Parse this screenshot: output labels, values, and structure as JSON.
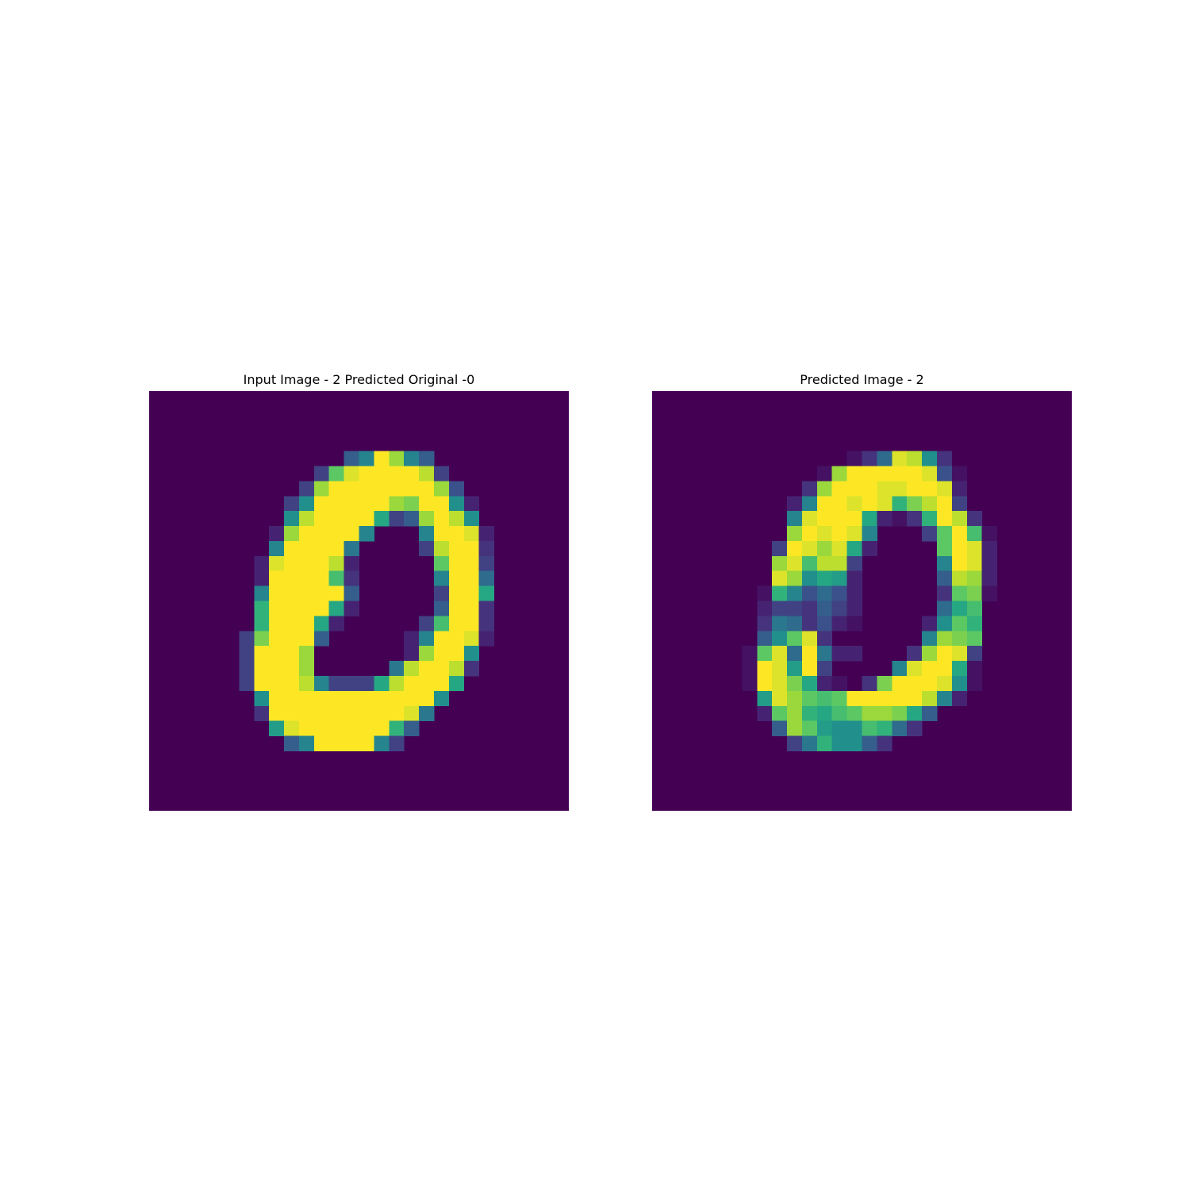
{
  "chart_data": [
    {
      "type": "heatmap",
      "title": "Input Image - 2 Predicted Original -0",
      "colormap": "viridis",
      "value_range": [
        0,
        1
      ],
      "axes": "off",
      "rows": 28,
      "cols": 28,
      "pixels": {
        "4": {
          "13": 0.3,
          "14": 0.45,
          "15": 1.0,
          "16": 0.85,
          "17": 0.45,
          "18": 0.3
        },
        "5": {
          "11": 0.2,
          "12": 0.75,
          "13": 0.95,
          "14": 1.0,
          "15": 1.0,
          "16": 1.0,
          "17": 1.0,
          "18": 0.9,
          "19": 0.2
        },
        "6": {
          "10": 0.2,
          "11": 0.85,
          "12": 1.0,
          "13": 1.0,
          "14": 1.0,
          "15": 1.0,
          "16": 1.0,
          "17": 1.0,
          "18": 1.0,
          "19": 0.85,
          "20": 0.25
        },
        "7": {
          "9": 0.2,
          "10": 0.5,
          "11": 1.0,
          "12": 1.0,
          "13": 1.0,
          "14": 1.0,
          "15": 1.0,
          "16": 0.85,
          "17": 0.8,
          "18": 1.0,
          "19": 1.0,
          "20": 0.5,
          "21": 0.1
        },
        "8": {
          "9": 0.5,
          "10": 0.9,
          "11": 1.0,
          "12": 1.0,
          "13": 1.0,
          "14": 1.0,
          "15": 0.6,
          "16": 0.2,
          "17": 0.3,
          "18": 0.85,
          "19": 1.0,
          "20": 0.9,
          "21": 0.5
        },
        "9": {
          "8": 0.1,
          "9": 0.85,
          "10": 1.0,
          "11": 1.0,
          "12": 1.0,
          "13": 1.0,
          "14": 0.45,
          "18": 0.45,
          "19": 1.0,
          "20": 1.0,
          "21": 0.95,
          "22": 0.1
        },
        "10": {
          "8": 0.45,
          "9": 1.0,
          "10": 1.0,
          "11": 1.0,
          "12": 1.0,
          "13": 0.4,
          "18": 0.2,
          "19": 0.9,
          "20": 1.0,
          "21": 1.0,
          "22": 0.15
        },
        "11": {
          "7": 0.1,
          "8": 0.95,
          "9": 1.0,
          "10": 1.0,
          "11": 1.0,
          "12": 0.9,
          "13": 0.1,
          "19": 0.75,
          "20": 1.0,
          "21": 1.0,
          "22": 0.2
        },
        "12": {
          "7": 0.1,
          "8": 1.0,
          "9": 1.0,
          "10": 1.0,
          "11": 1.0,
          "12": 0.7,
          "13": 0.15,
          "19": 0.45,
          "20": 1.0,
          "21": 1.0,
          "22": 0.35
        },
        "13": {
          "7": 0.45,
          "8": 1.0,
          "9": 1.0,
          "10": 1.0,
          "11": 1.0,
          "12": 1.0,
          "13": 0.3,
          "19": 0.2,
          "20": 1.0,
          "21": 1.0,
          "22": 0.6
        },
        "14": {
          "7": 0.65,
          "8": 1.0,
          "9": 1.0,
          "10": 1.0,
          "11": 1.0,
          "12": 0.6,
          "13": 0.1,
          "19": 0.3,
          "20": 1.0,
          "21": 1.0,
          "22": 0.15
        },
        "15": {
          "7": 0.65,
          "8": 1.0,
          "9": 1.0,
          "10": 1.0,
          "11": 0.6,
          "12": 0.1,
          "18": 0.2,
          "19": 0.7,
          "20": 1.0,
          "21": 1.0,
          "22": 0.15
        },
        "16": {
          "6": 0.2,
          "7": 0.8,
          "8": 1.0,
          "9": 1.0,
          "10": 1.0,
          "11": 0.3,
          "17": 0.1,
          "18": 0.45,
          "19": 1.0,
          "20": 1.0,
          "21": 0.95,
          "22": 0.1
        },
        "17": {
          "6": 0.2,
          "7": 1.0,
          "8": 1.0,
          "9": 1.0,
          "10": 0.85,
          "17": 0.1,
          "18": 0.85,
          "19": 1.0,
          "20": 1.0,
          "21": 0.5
        },
        "18": {
          "6": 0.2,
          "7": 1.0,
          "8": 1.0,
          "9": 1.0,
          "10": 0.85,
          "16": 0.4,
          "17": 0.9,
          "18": 1.0,
          "19": 1.0,
          "20": 0.9,
          "21": 0.15
        },
        "19": {
          "6": 0.2,
          "7": 1.0,
          "8": 1.0,
          "9": 1.0,
          "10": 0.9,
          "11": 0.45,
          "12": 0.2,
          "13": 0.2,
          "14": 0.2,
          "15": 0.6,
          "16": 0.9,
          "17": 1.0,
          "18": 1.0,
          "19": 1.0,
          "20": 0.6
        },
        "20": {
          "7": 0.5,
          "8": 1.0,
          "9": 1.0,
          "10": 1.0,
          "11": 1.0,
          "12": 1.0,
          "13": 1.0,
          "14": 1.0,
          "15": 1.0,
          "16": 1.0,
          "17": 1.0,
          "18": 1.0,
          "19": 0.5
        },
        "21": {
          "7": 0.15,
          "8": 1.0,
          "9": 1.0,
          "10": 1.0,
          "11": 1.0,
          "12": 1.0,
          "13": 1.0,
          "14": 1.0,
          "15": 1.0,
          "16": 1.0,
          "17": 0.95,
          "18": 0.4
        },
        "22": {
          "8": 0.55,
          "9": 0.95,
          "10": 1.0,
          "11": 1.0,
          "12": 1.0,
          "13": 1.0,
          "14": 1.0,
          "15": 1.0,
          "16": 0.65,
          "17": 0.3
        },
        "23": {
          "9": 0.3,
          "10": 0.45,
          "11": 1.0,
          "12": 1.0,
          "13": 1.0,
          "14": 1.0,
          "15": 0.45,
          "16": 0.2
        }
      }
    },
    {
      "type": "heatmap",
      "title": "Predicted Image - 2",
      "colormap": "viridis",
      "value_range": [
        0,
        1
      ],
      "axes": "off",
      "rows": 28,
      "cols": 28,
      "pixels": {
        "4": {
          "13": 0.05,
          "14": 0.15,
          "15": 0.35,
          "16": 0.95,
          "17": 0.9,
          "18": 0.5,
          "19": 0.15
        },
        "5": {
          "11": 0.05,
          "12": 0.85,
          "13": 1.0,
          "14": 1.0,
          "15": 1.0,
          "16": 1.0,
          "17": 1.0,
          "18": 0.95,
          "19": 0.25,
          "20": 0.05
        },
        "6": {
          "10": 0.15,
          "11": 0.85,
          "12": 1.0,
          "13": 1.0,
          "14": 1.0,
          "15": 0.95,
          "16": 0.95,
          "17": 1.0,
          "18": 1.0,
          "19": 0.95,
          "20": 0.1
        },
        "7": {
          "9": 0.1,
          "10": 0.45,
          "11": 1.0,
          "12": 1.0,
          "13": 0.95,
          "14": 1.0,
          "15": 0.95,
          "16": 0.65,
          "17": 0.8,
          "18": 0.9,
          "19": 1.0,
          "20": 0.2
        },
        "8": {
          "9": 0.45,
          "10": 0.95,
          "11": 1.0,
          "12": 1.0,
          "13": 1.0,
          "14": 0.6,
          "15": 0.1,
          "16": 0.05,
          "17": 0.15,
          "18": 0.65,
          "19": 1.0,
          "20": 0.9,
          "21": 0.15
        },
        "9": {
          "9": 0.85,
          "10": 1.0,
          "11": 0.95,
          "12": 1.0,
          "13": 0.95,
          "14": 0.45,
          "18": 0.2,
          "19": 0.75,
          "20": 1.0,
          "21": 0.7,
          "22": 0.05
        },
        "10": {
          "8": 0.2,
          "9": 1.0,
          "10": 0.95,
          "11": 0.85,
          "12": 0.95,
          "13": 0.6,
          "14": 0.1,
          "19": 0.75,
          "20": 1.0,
          "21": 0.95,
          "22": 0.1
        },
        "11": {
          "8": 0.85,
          "9": 0.95,
          "10": 0.7,
          "11": 0.9,
          "12": 0.9,
          "13": 0.2,
          "19": 0.45,
          "20": 1.0,
          "21": 0.95,
          "22": 0.1
        },
        "12": {
          "8": 0.95,
          "9": 0.85,
          "10": 0.5,
          "11": 0.6,
          "12": 0.55,
          "13": 0.1,
          "19": 0.3,
          "20": 0.9,
          "21": 0.85,
          "22": 0.1
        },
        "13": {
          "7": 0.05,
          "8": 0.65,
          "9": 0.45,
          "10": 0.25,
          "11": 0.35,
          "12": 0.25,
          "13": 0.1,
          "19": 0.15,
          "20": 0.75,
          "21": 0.8,
          "22": 0.05
        },
        "14": {
          "7": 0.1,
          "8": 0.2,
          "9": 0.2,
          "10": 0.15,
          "11": 0.3,
          "12": 0.2,
          "13": 0.1,
          "19": 0.35,
          "20": 0.6,
          "21": 0.7
        },
        "15": {
          "7": 0.15,
          "8": 0.4,
          "9": 0.35,
          "10": 0.15,
          "11": 0.25,
          "12": 0.1,
          "13": 0.05,
          "18": 0.1,
          "19": 0.5,
          "20": 0.75,
          "21": 0.65
        },
        "16": {
          "7": 0.3,
          "8": 0.5,
          "9": 0.75,
          "10": 0.95,
          "11": 0.15,
          "18": 0.45,
          "19": 0.85,
          "20": 0.8,
          "21": 0.75
        },
        "17": {
          "6": 0.05,
          "7": 0.75,
          "8": 0.95,
          "9": 0.35,
          "10": 1.0,
          "11": 0.4,
          "12": 0.1,
          "13": 0.1,
          "17": 0.15,
          "18": 0.85,
          "19": 1.0,
          "20": 0.95,
          "21": 0.2
        },
        "18": {
          "6": 0.05,
          "7": 1.0,
          "8": 0.95,
          "9": 0.55,
          "10": 1.0,
          "11": 0.2,
          "16": 0.45,
          "17": 0.95,
          "18": 1.0,
          "19": 1.0,
          "20": 0.6,
          "21": 0.05
        },
        "19": {
          "6": 0.05,
          "7": 1.0,
          "8": 0.95,
          "9": 0.8,
          "10": 0.6,
          "11": 0.1,
          "12": 0.05,
          "14": 0.15,
          "15": 0.8,
          "16": 1.0,
          "17": 1.0,
          "18": 1.0,
          "19": 0.95,
          "20": 0.5,
          "21": 0.05
        },
        "20": {
          "7": 0.55,
          "8": 0.95,
          "9": 0.85,
          "10": 0.75,
          "11": 0.7,
          "12": 0.75,
          "13": 1.0,
          "14": 1.0,
          "15": 1.0,
          "16": 1.0,
          "17": 1.0,
          "18": 0.9,
          "19": 0.45,
          "20": 0.1
        },
        "21": {
          "7": 0.1,
          "8": 0.75,
          "9": 0.85,
          "10": 0.65,
          "11": 0.6,
          "12": 0.7,
          "13": 0.75,
          "14": 0.85,
          "15": 0.85,
          "16": 0.8,
          "17": 0.6,
          "18": 0.3
        },
        "22": {
          "8": 0.3,
          "9": 0.85,
          "10": 0.75,
          "11": 0.55,
          "12": 0.5,
          "13": 0.5,
          "14": 0.7,
          "15": 0.65,
          "16": 0.35,
          "17": 0.15
        },
        "23": {
          "9": 0.2,
          "10": 0.4,
          "11": 0.65,
          "12": 0.5,
          "13": 0.5,
          "14": 0.3,
          "15": 0.15
        }
      }
    }
  ]
}
